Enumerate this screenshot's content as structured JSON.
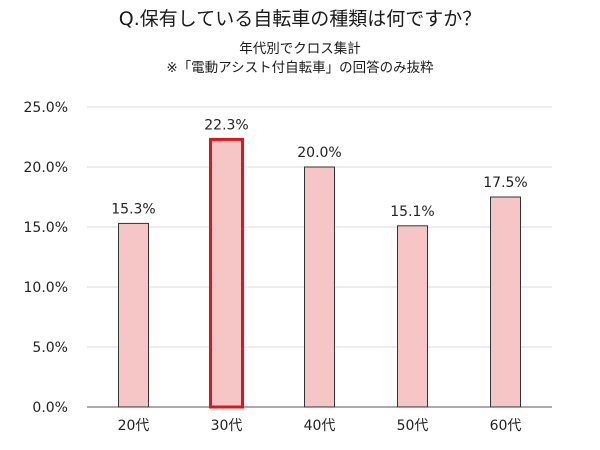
{
  "title": "Q.保有している自転車の種類は何ですか？",
  "subtitle_line1": "年代別でクロス集計",
  "subtitle_line2": "※「電動アシスト付自転車」の回答のみ抜粋",
  "colors": {
    "bar_fill": "#f6c6c6",
    "bar_stroke": "#333333",
    "highlight_stroke": "#e0141c",
    "grid": "#d9d9d9",
    "axis": "#555555"
  },
  "chart_data": {
    "type": "bar",
    "categories": [
      "20代",
      "30代",
      "40代",
      "50代",
      "60代"
    ],
    "values": [
      15.3,
      22.3,
      20.0,
      15.1,
      17.5
    ],
    "value_labels": [
      "15.3%",
      "22.3%",
      "20.0%",
      "15.1%",
      "17.5%"
    ],
    "highlighted_category": "30代",
    "ylim": [
      0,
      25
    ],
    "y_ticks": [
      0,
      5,
      10,
      15,
      20,
      25
    ],
    "y_tick_labels": [
      "0.0%",
      "5.0%",
      "10.0%",
      "15.0%",
      "20.0%",
      "25.0%"
    ],
    "grid": true,
    "legend": false,
    "xlabel": "",
    "ylabel": ""
  }
}
